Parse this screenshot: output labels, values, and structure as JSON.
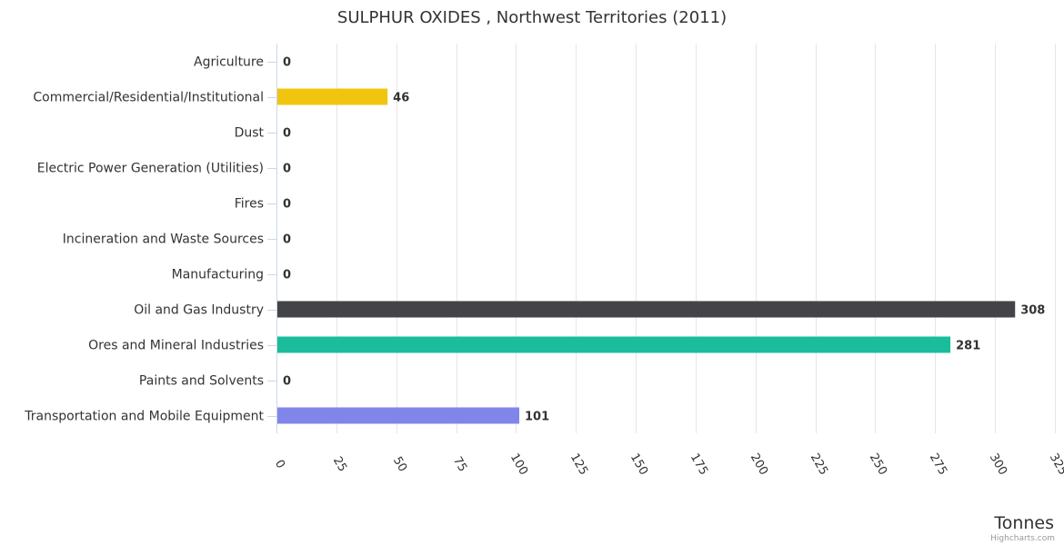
{
  "chart_data": {
    "type": "bar",
    "orientation": "horizontal",
    "title": "SULPHUR OXIDES , Northwest Territories (2011)",
    "xlabel": "",
    "ylabel": "Tonnes",
    "categories": [
      "Agriculture",
      "Commercial/Residential/Institutional",
      "Dust",
      "Electric Power Generation (Utilities)",
      "Fires",
      "Incineration and Waste Sources",
      "Manufacturing",
      "Oil and Gas Industry",
      "Ores and Mineral Industries",
      "Paints and Solvents",
      "Transportation and Mobile Equipment"
    ],
    "values": [
      0,
      46,
      0,
      0,
      0,
      0,
      0,
      308,
      281,
      0,
      101
    ],
    "data_labels": [
      "0",
      "46",
      "0",
      "0",
      "0",
      "0",
      "0",
      "308",
      "281",
      "0",
      "101"
    ],
    "colors": [
      "#7cb5ec",
      "#f1c40f",
      "#2ecc71",
      "#7f8c8d",
      "#e74c3c",
      "#9b59b6",
      "#e67e22",
      "#434348",
      "#1abc9c",
      "#f15c80",
      "#8085e9"
    ],
    "ylim": [
      0,
      325
    ],
    "ticks": [
      "0",
      "25",
      "50",
      "75",
      "100",
      "125",
      "150",
      "175",
      "200",
      "225",
      "250",
      "275",
      "300",
      "325"
    ],
    "grid": true,
    "legend": "none"
  },
  "credits": "Highcharts.com"
}
